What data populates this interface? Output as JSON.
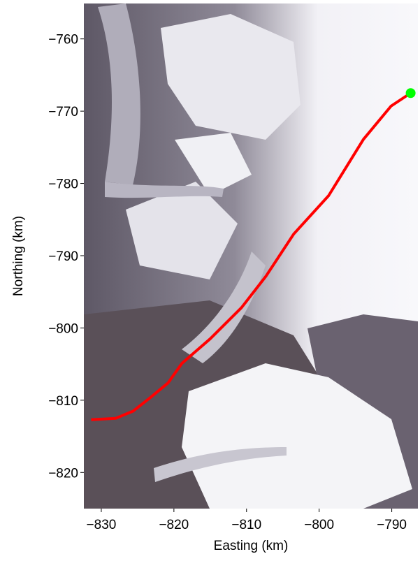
{
  "chart_data": {
    "type": "line",
    "xlabel": "Easting (km)",
    "ylabel": "Northing (km)",
    "xlim": [
      -832.4,
      -786.4
    ],
    "ylim": [
      -825.0,
      -755.1
    ],
    "xticks": [
      {
        "value": -830,
        "label": "−830"
      },
      {
        "value": -820,
        "label": "−820"
      },
      {
        "value": -810,
        "label": "−810"
      },
      {
        "value": -800,
        "label": "−800"
      },
      {
        "value": -790,
        "label": "−790"
      }
    ],
    "yticks": [
      {
        "value": -820,
        "label": "−820"
      },
      {
        "value": -810,
        "label": "−810"
      },
      {
        "value": -800,
        "label": "−800"
      },
      {
        "value": -790,
        "label": "−790"
      },
      {
        "value": -780,
        "label": "−780"
      },
      {
        "value": -770,
        "label": "−770"
      },
      {
        "value": -760,
        "label": "−760"
      }
    ],
    "series": [
      {
        "color": "#ff0000",
        "x": [
          -831.4,
          -828.0,
          -825.6,
          -823.2,
          -820.8,
          -818.9,
          -815.0,
          -810.7,
          -807.3,
          -803.5,
          -798.7,
          -793.9,
          -790.1,
          -787.4
        ],
        "y": [
          -812.7,
          -812.5,
          -811.5,
          -809.6,
          -807.6,
          -804.9,
          -801.5,
          -797.2,
          -792.8,
          -787.0,
          -781.7,
          -773.9,
          -769.3,
          -767.5
        ]
      }
    ],
    "marker": {
      "x": -787.4,
      "y": -767.5,
      "color": "#00ff00"
    }
  }
}
